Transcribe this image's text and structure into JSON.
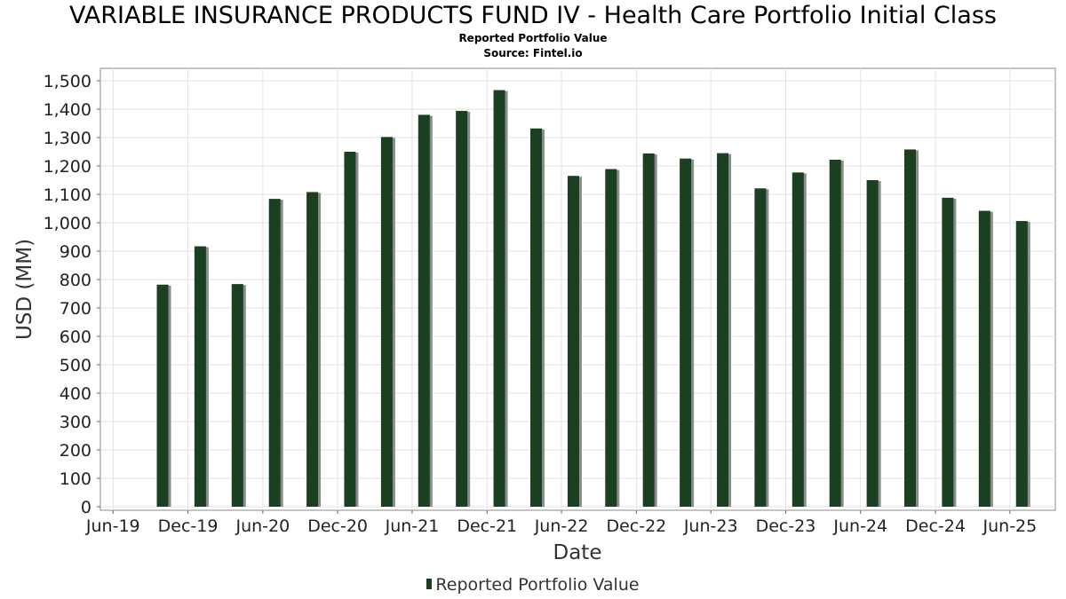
{
  "chart_data": {
    "type": "bar",
    "title": "VARIABLE INSURANCE PRODUCTS FUND IV - Health Care Portfolio Initial Class",
    "subtitle": "Reported Portfolio Value",
    "source": "Source: Fintel.io",
    "xlabel": "Date",
    "ylabel": "USD (MM)",
    "ylim": [
      0,
      1540
    ],
    "yticks": [
      0,
      100,
      200,
      300,
      400,
      500,
      600,
      700,
      800,
      900,
      1000,
      1100,
      1200,
      1300,
      1400,
      1500
    ],
    "ytick_labels": [
      "0",
      "100",
      "200",
      "300",
      "400",
      "500",
      "600",
      "700",
      "800",
      "900",
      "1,000",
      "1,100",
      "1,200",
      "1,300",
      "1,400",
      "1,500"
    ],
    "xlim": [
      "2019-05-01",
      "2025-09-20"
    ],
    "xticks": [
      "2019-06-01",
      "2019-12-01",
      "2020-06-01",
      "2020-12-01",
      "2021-06-01",
      "2021-12-01",
      "2022-06-01",
      "2022-12-01",
      "2023-06-01",
      "2023-12-01",
      "2024-06-01",
      "2024-12-01",
      "2025-06-01"
    ],
    "xtick_labels": [
      "Jun-19",
      "Dec-19",
      "Jun-20",
      "Dec-20",
      "Jun-21",
      "Dec-21",
      "Jun-22",
      "Dec-22",
      "Jun-23",
      "Dec-23",
      "Jun-24",
      "Dec-24",
      "Jun-25"
    ],
    "grid": true,
    "legend_position": "bottom",
    "series": [
      {
        "name": "Reported Portfolio Value",
        "color": "#1a3f21",
        "x": [
          "2019-09-30",
          "2019-12-31",
          "2020-03-31",
          "2020-06-30",
          "2020-09-30",
          "2020-12-31",
          "2021-03-31",
          "2021-06-30",
          "2021-09-30",
          "2021-12-31",
          "2022-03-31",
          "2022-06-30",
          "2022-09-30",
          "2022-12-31",
          "2023-03-31",
          "2023-06-30",
          "2023-09-30",
          "2023-12-31",
          "2024-03-31",
          "2024-06-30",
          "2024-09-30",
          "2024-12-31",
          "2025-03-31",
          "2025-06-30"
        ],
        "values": [
          782,
          917,
          784,
          1084,
          1108,
          1250,
          1302,
          1380,
          1394,
          1467,
          1332,
          1165,
          1189,
          1244,
          1226,
          1245,
          1121,
          1177,
          1222,
          1150,
          1258,
          1088,
          1042,
          1006
        ]
      }
    ]
  }
}
